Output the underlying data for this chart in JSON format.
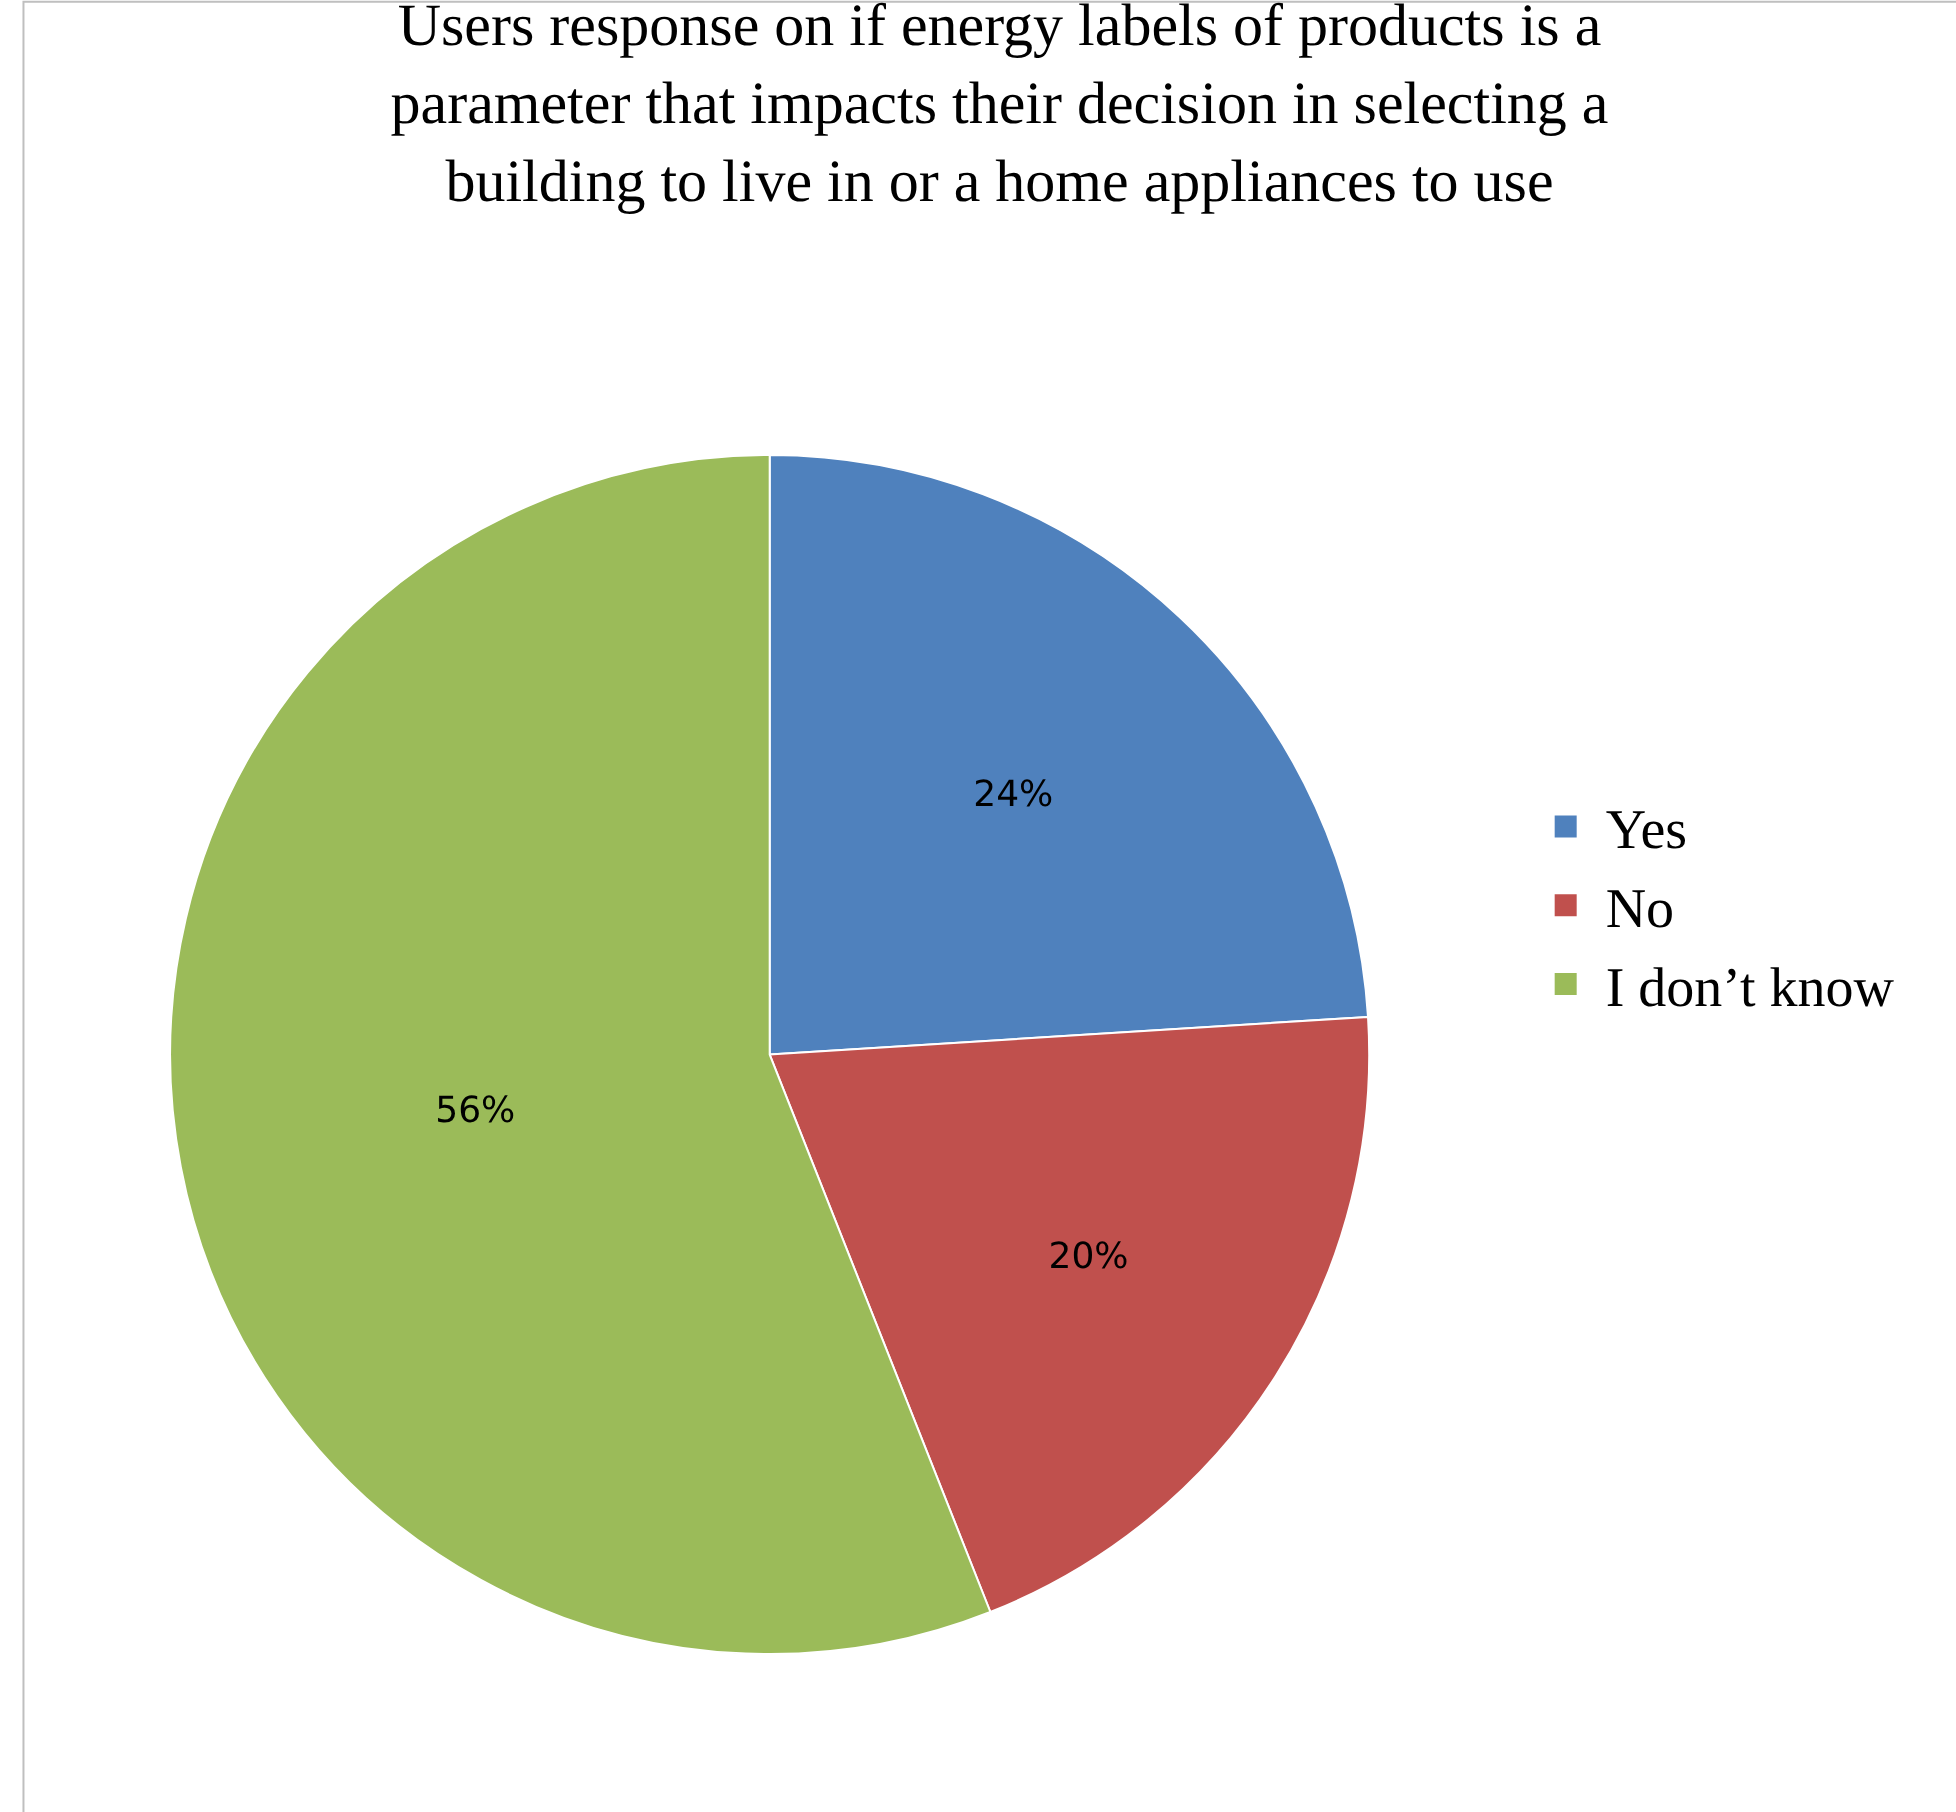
{
  "chart_data": {
    "type": "pie",
    "title": "Users response on if energy labels of products is a parameter that impacts their decision in selecting a building to live in or a home appliances to use",
    "categories": [
      "Yes",
      "No",
      "I don’t know"
    ],
    "values": [
      24,
      20,
      56
    ],
    "colors": [
      "#4f81bd",
      "#c0504d",
      "#9bbb59"
    ],
    "value_labels": [
      "24%",
      "20%",
      "56%"
    ],
    "legend": "right"
  }
}
